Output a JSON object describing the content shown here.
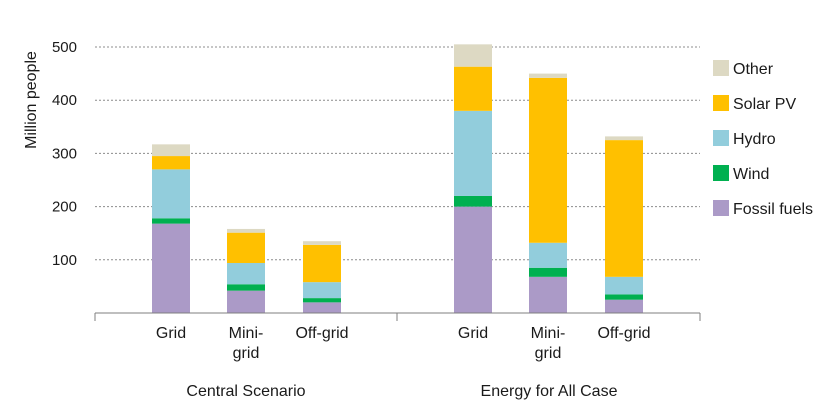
{
  "chart_data": {
    "type": "bar",
    "stacked": true,
    "ylabel": "Million people",
    "ylim": [
      0,
      500
    ],
    "yticks": [
      100,
      200,
      300,
      400,
      500
    ],
    "grid": true,
    "legend_position": "right",
    "groups": [
      {
        "label": "Central Scenario",
        "categories": [
          {
            "label": "Grid"
          },
          {
            "label": "Mini-\ngrid"
          },
          {
            "label": "Off-grid"
          }
        ]
      },
      {
        "label": "Energy for All  Case",
        "categories": [
          {
            "label": "Grid"
          },
          {
            "label": "Mini-\ngrid"
          },
          {
            "label": "Off-grid"
          }
        ]
      }
    ],
    "series": [
      {
        "name": "Fossil fuels",
        "color": "#ab9ac7",
        "values": [
          168,
          42,
          20,
          200,
          68,
          25
        ]
      },
      {
        "name": "Wind",
        "color": "#00b050",
        "values": [
          10,
          12,
          8,
          20,
          17,
          10
        ]
      },
      {
        "name": "Hydro",
        "color": "#92cddc",
        "values": [
          92,
          40,
          30,
          160,
          47,
          33
        ]
      },
      {
        "name": "Solar PV",
        "color": "#ffc000",
        "values": [
          25,
          57,
          70,
          83,
          310,
          257
        ]
      },
      {
        "name": "Other",
        "color": "#ddd9c3",
        "values": [
          22,
          7,
          7,
          42,
          8,
          7
        ]
      }
    ]
  }
}
